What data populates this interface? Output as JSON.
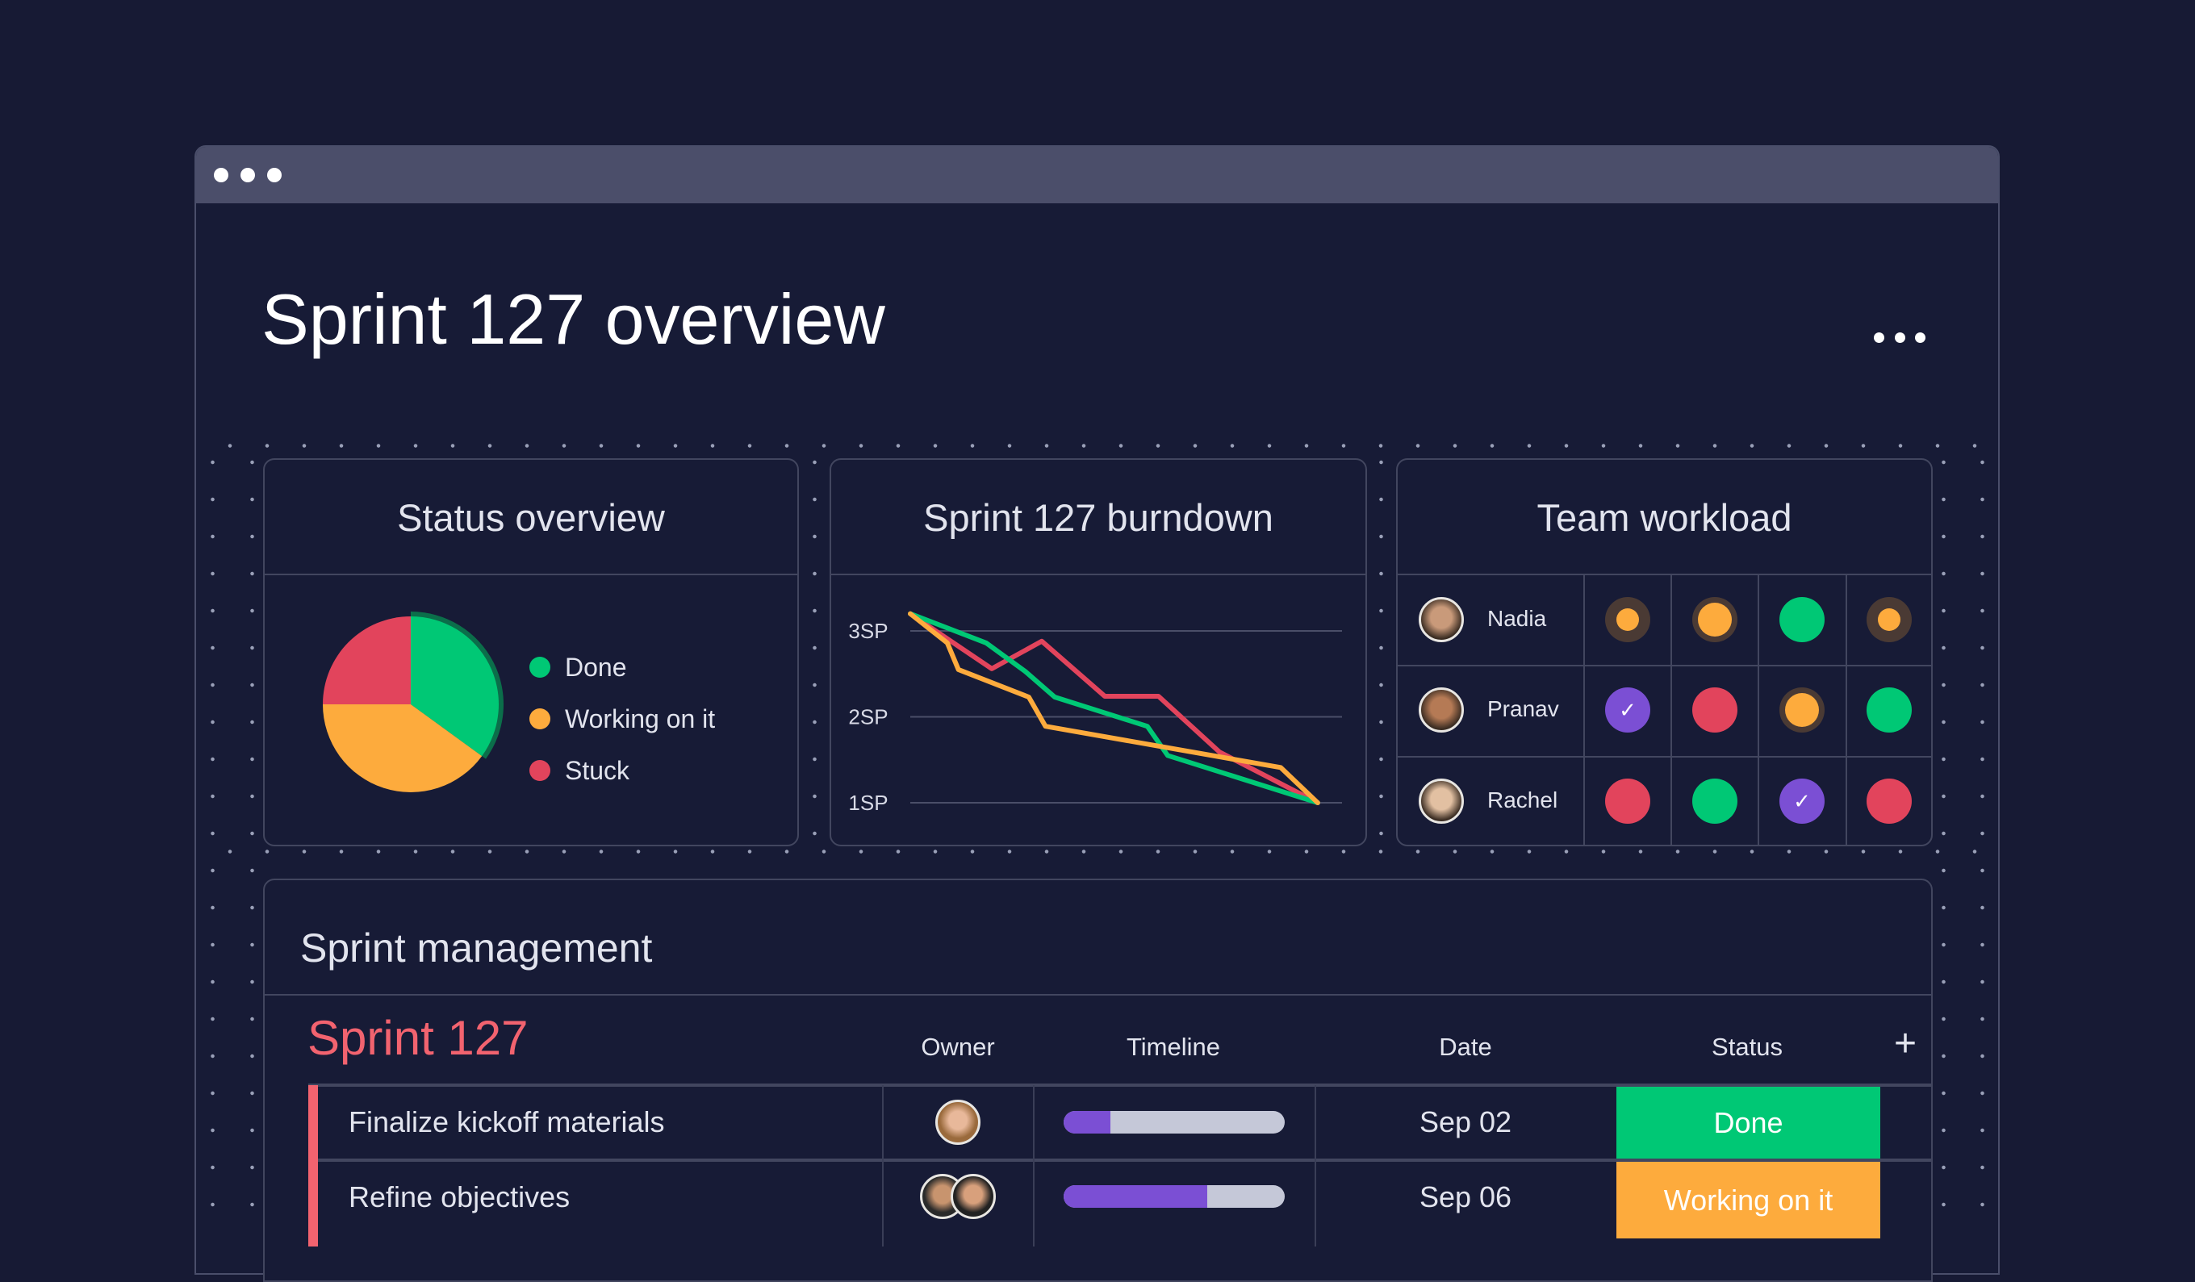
{
  "window": {
    "title": "Sprint 127 overview",
    "menu_icon": "ellipsis-icon"
  },
  "status_overview": {
    "title": "Status overview",
    "legend": [
      {
        "label": "Done",
        "color": "#00c875"
      },
      {
        "label": "Working on it",
        "color": "#fdab3d"
      },
      {
        "label": "Stuck",
        "color": "#e2445c"
      }
    ]
  },
  "burndown": {
    "title": "Sprint 127 burndown"
  },
  "team_workload": {
    "title": "Team workload",
    "members": [
      {
        "name": "Nadia",
        "cells": [
          "working-light",
          "working",
          "done",
          "working-light"
        ]
      },
      {
        "name": "Pranav",
        "cells": [
          "checked",
          "stuck",
          "working",
          "done"
        ]
      },
      {
        "name": "Rachel",
        "cells": [
          "stuck",
          "done",
          "checked",
          "stuck"
        ]
      }
    ]
  },
  "sprint_management": {
    "title": "Sprint management",
    "group": "Sprint 127",
    "group_color": "#f2636f",
    "columns": [
      "Owner",
      "Timeline",
      "Date",
      "Status"
    ],
    "add_column": "+",
    "rows": [
      {
        "task": "Finalize kickoff materials",
        "owners": 1,
        "timeline_progress": 0.21,
        "date": "Sep 02",
        "status": "Done",
        "status_color": "#00c875"
      },
      {
        "task": "Refine objectives",
        "owners": 2,
        "timeline_progress": 0.65,
        "date": "Sep 06",
        "status": "Working on it",
        "status_color": "#fdab3d"
      }
    ]
  },
  "chart_data": [
    {
      "type": "pie",
      "title": "Status overview",
      "categories": [
        "Done",
        "Working on it",
        "Stuck"
      ],
      "values": [
        35,
        40,
        25
      ],
      "colors": [
        "#00c875",
        "#fdab3d",
        "#e2445c"
      ],
      "legend": "right"
    },
    {
      "type": "line",
      "title": "Sprint 127 burndown",
      "ylabel": "",
      "yticks": [
        "1SP",
        "2SP",
        "3SP"
      ],
      "ylim": [
        1,
        3
      ],
      "grid": true,
      "series": [
        {
          "color": "#e2445c",
          "points": [
            [
              0,
              3.2
            ],
            [
              2.2,
              2.56
            ],
            [
              3.55,
              2.88
            ],
            [
              5.25,
              2.24
            ],
            [
              6.7,
              2.24
            ],
            [
              8.35,
              1.59
            ],
            [
              11,
              1.0
            ]
          ]
        },
        {
          "color": "#00c875",
          "points": [
            [
              0,
              3.2
            ],
            [
              2.05,
              2.86
            ],
            [
              3.1,
              2.53
            ],
            [
              3.9,
              2.23
            ],
            [
              6.4,
              1.89
            ],
            [
              6.95,
              1.55
            ],
            [
              11,
              1.0
            ]
          ]
        },
        {
          "color": "#fdab3d",
          "points": [
            [
              0,
              3.2
            ],
            [
              1,
              2.86
            ],
            [
              1.3,
              2.55
            ],
            [
              3.2,
              2.23
            ],
            [
              3.65,
              1.89
            ],
            [
              10,
              1.41
            ],
            [
              11,
              1.0
            ]
          ]
        }
      ]
    }
  ]
}
